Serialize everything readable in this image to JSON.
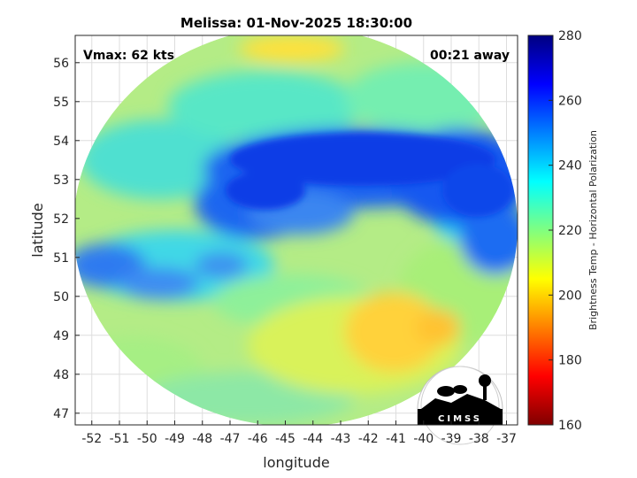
{
  "title": "Melissa: 01-Nov-2025 18:30:00",
  "vmax_label": "Vmax: 62 kts",
  "time_away_label": "00:21 away",
  "xlabel": "longitude",
  "ylabel": "latitude",
  "x_ticks": [
    "-52",
    "-51",
    "-50",
    "-49",
    "-48",
    "-47",
    "-46",
    "-45",
    "-44",
    "-43",
    "-42",
    "-41",
    "-40",
    "-39",
    "-38",
    "-37"
  ],
  "y_ticks": [
    "47",
    "48",
    "49",
    "50",
    "51",
    "52",
    "53",
    "54",
    "55",
    "56"
  ],
  "xlim": [
    -52.6,
    -36.6
  ],
  "ylim": [
    46.7,
    56.7
  ],
  "colorbar": {
    "label": "Brightness Temp - Horizontal Polarization",
    "ticks": [
      "160",
      "180",
      "200",
      "220",
      "240",
      "260",
      "280"
    ],
    "range": [
      160,
      280
    ],
    "colormap": [
      "#800000",
      "#ff0000",
      "#ff8000",
      "#ffff00",
      "#80ff80",
      "#00ffff",
      "#0080ff",
      "#0000ff",
      "#000080"
    ]
  },
  "logo_text": "CIMSS",
  "colors": {
    "background_disc": "#c8f07a",
    "grid": "#dddddd"
  }
}
